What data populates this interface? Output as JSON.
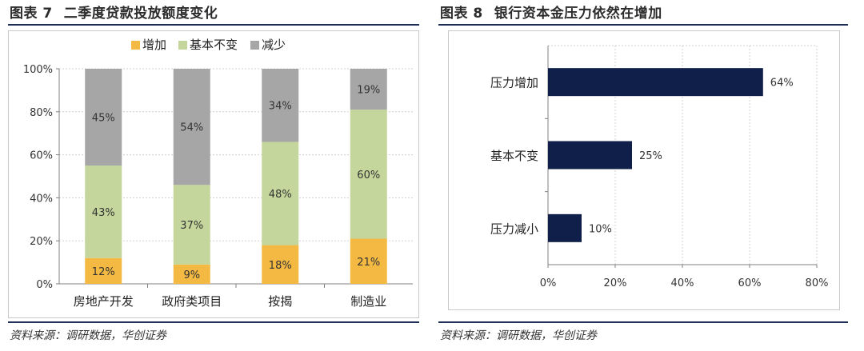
{
  "left_figure": {
    "title_num": "图表 7",
    "title_text": "二季度贷款投放额度变化",
    "source": "资料来源：调研数据，华创证券"
  },
  "right_figure": {
    "title_num": "图表 8",
    "title_text": "银行资本金压力依然在增加",
    "source": "资料来源：调研数据，华创证券"
  },
  "colors": {
    "increase": "#f4b942",
    "unchanged": "#c4d69b",
    "decrease": "#a6a6a6",
    "bar_navy": "#0f1f4a",
    "grid": "#d0d0d0"
  },
  "chart_data": [
    {
      "type": "bar",
      "stacked": true,
      "percent": true,
      "categories": [
        "房地产开发",
        "政府类项目",
        "按揭",
        "制造业"
      ],
      "series": [
        {
          "name": "增加",
          "values": [
            12,
            9,
            18,
            21
          ],
          "labels": [
            "12%",
            "9%",
            "18%",
            "21%"
          ]
        },
        {
          "name": "基本不变",
          "values": [
            43,
            37,
            48,
            60
          ],
          "labels": [
            "43%",
            "37%",
            "48%",
            "60%"
          ]
        },
        {
          "name": "减少",
          "values": [
            45,
            54,
            34,
            19
          ],
          "labels": [
            "45%",
            "54%",
            "34%",
            "19%"
          ]
        }
      ],
      "ylim": [
        0,
        100
      ],
      "yticks": [
        "0%",
        "20%",
        "40%",
        "60%",
        "80%",
        "100%"
      ],
      "legend": "top",
      "grid": true
    },
    {
      "type": "bar",
      "orientation": "horizontal",
      "categories": [
        "压力增加",
        "基本不变",
        "压力减小"
      ],
      "values": [
        64,
        25,
        10
      ],
      "labels": [
        "64%",
        "25%",
        "10%"
      ],
      "xlim": [
        0,
        80
      ],
      "xticks": [
        "0%",
        "20%",
        "40%",
        "60%",
        "80%"
      ],
      "grid": true
    }
  ]
}
